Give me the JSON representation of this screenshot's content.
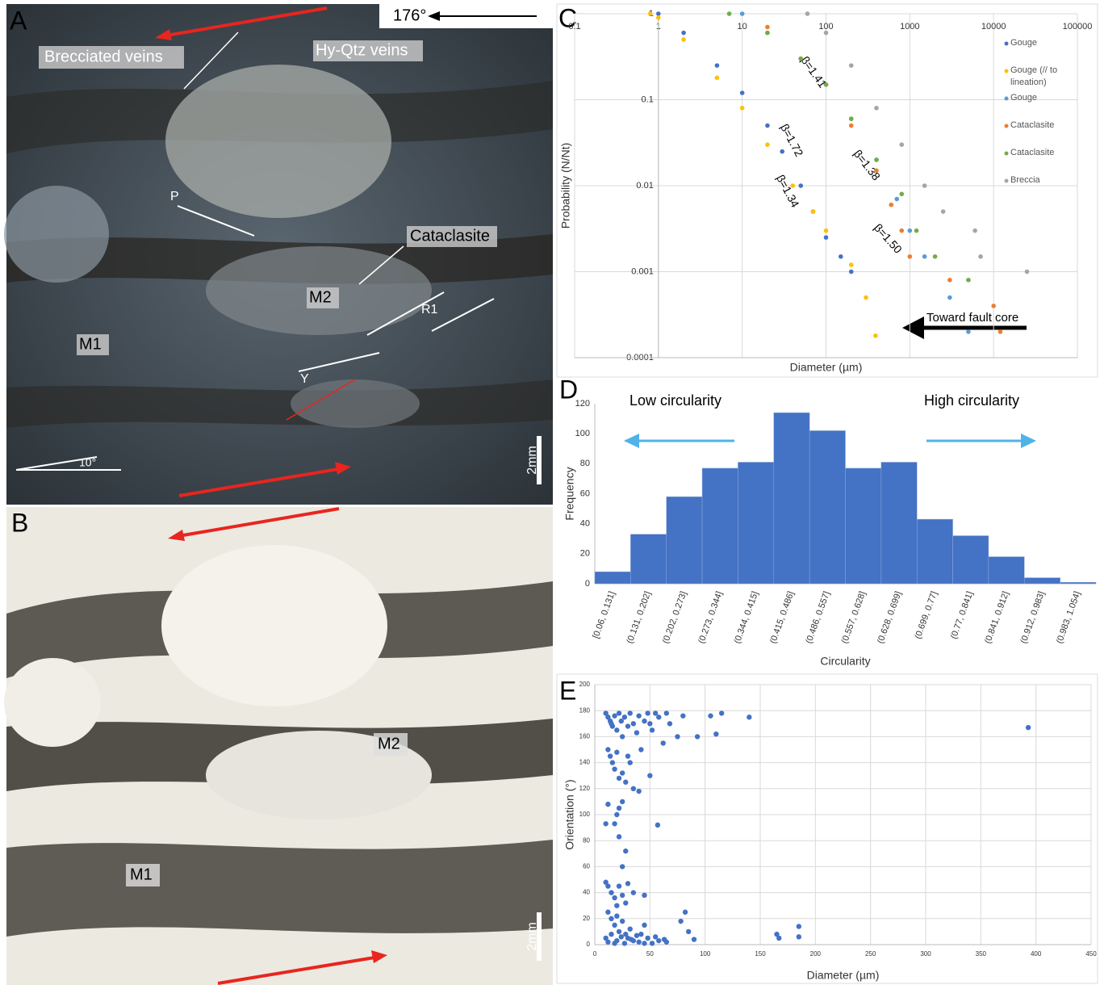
{
  "panels": {
    "A": {
      "letter": "A",
      "bearing": "176°",
      "labels": [
        "Brecciated veins",
        "Hy-Qtz veins",
        "P",
        "Cataclasite",
        "M2",
        "R1",
        "M1",
        "Y",
        "10°"
      ],
      "scale": "2mm"
    },
    "B": {
      "letter": "B",
      "labels": [
        "M2",
        "M1"
      ],
      "scale": "2mm"
    }
  },
  "chart_data": [
    {
      "type": "scatter",
      "panel": "C",
      "log_x": true,
      "log_y": true,
      "grid": true,
      "legend": "right",
      "xlabel": "Diameter (µm)",
      "ylabel": "Probability (N/Nt)",
      "xlim": [
        0.1,
        100000
      ],
      "ylim": [
        0.0001,
        1
      ],
      "xticks": [
        0.1,
        1,
        10,
        100,
        1000,
        10000,
        100000
      ],
      "yticks": [
        1,
        0.1,
        0.01,
        0.001,
        0.0001
      ],
      "annotations": [
        "β=1.41",
        "β=1.72",
        "β=1.38",
        "β=1.34",
        "β=1.50",
        "Toward  fault core"
      ],
      "series": [
        {
          "name": "Gouge",
          "color": "#4472c4",
          "x": [
            1,
            2,
            5,
            10,
            20,
            30,
            50,
            70,
            100,
            150,
            200
          ],
          "values": [
            1,
            0.6,
            0.25,
            0.12,
            0.05,
            0.025,
            0.01,
            0.005,
            0.0025,
            0.0015,
            0.001
          ]
        },
        {
          "name": "Gouge (// to lineation)",
          "color": "#ffc000",
          "x": [
            0.8,
            1,
            2,
            5,
            10,
            20,
            40,
            70,
            100,
            200,
            300,
            390
          ],
          "values": [
            1,
            0.9,
            0.5,
            0.18,
            0.08,
            0.03,
            0.01,
            0.005,
            0.003,
            0.0012,
            0.0005,
            0.00018
          ]
        },
        {
          "name": "Gouge",
          "color": "#5b9bd5",
          "x": [
            10,
            20,
            50,
            100,
            200,
            400,
            700,
            1000,
            1500,
            3000,
            5000
          ],
          "values": [
            1,
            0.6,
            0.3,
            0.15,
            0.06,
            0.02,
            0.007,
            0.003,
            0.0015,
            0.0005,
            0.0002
          ]
        },
        {
          "name": "Cataclasite",
          "color": "#ed7d31",
          "x": [
            20,
            50,
            100,
            200,
            400,
            600,
            800,
            1000,
            3000,
            10000,
            12000
          ],
          "values": [
            0.7,
            0.3,
            0.15,
            0.05,
            0.015,
            0.006,
            0.003,
            0.0015,
            0.0008,
            0.0004,
            0.0002
          ]
        },
        {
          "name": "Cataclasite",
          "color": "#70ad47",
          "x": [
            7,
            20,
            50,
            100,
            200,
            400,
            800,
            1200,
            2000,
            5000
          ],
          "values": [
            1,
            0.6,
            0.3,
            0.15,
            0.06,
            0.02,
            0.008,
            0.003,
            0.0015,
            0.0008
          ]
        },
        {
          "name": "Breccia",
          "color": "#a5a5a5",
          "x": [
            60,
            100,
            200,
            400,
            800,
            1500,
            2500,
            6000,
            7000,
            25000
          ],
          "values": [
            1,
            0.6,
            0.25,
            0.08,
            0.03,
            0.01,
            0.005,
            0.003,
            0.0015,
            0.001
          ]
        }
      ]
    },
    {
      "type": "bar",
      "panel": "D",
      "color": "#4472c4",
      "xlabel": "Circularity",
      "ylabel": "Frequency",
      "annotations": [
        "Low circularity",
        "High circularity"
      ],
      "ylim": [
        0,
        120
      ],
      "yticks": [
        0,
        20,
        40,
        60,
        80,
        100,
        120
      ],
      "categories": [
        "[0.06, 0.131]",
        "(0.131, 0.202]",
        "(0.202, 0.273]",
        "(0.273, 0.344]",
        "(0.344, 0.415]",
        "(0.415, 0.486]",
        "(0.486, 0.557]",
        "(0.557, 0.628]",
        "(0.628, 0.699]",
        "(0.699, 0.77]",
        "(0.77, 0.841]",
        "(0.841, 0.912]",
        "(0.912, 0.983]",
        "(0.983, 1.054]"
      ],
      "values": [
        8,
        33,
        58,
        77,
        81,
        114,
        102,
        77,
        81,
        43,
        32,
        18,
        4,
        1
      ]
    },
    {
      "type": "scatter",
      "panel": "E",
      "grid": true,
      "color": "#4472c4",
      "xlabel": "Diameter (µm)",
      "ylabel": "Orientation (°)",
      "xlim": [
        0,
        450
      ],
      "ylim": [
        0,
        200
      ],
      "xticks": [
        0,
        50,
        100,
        150,
        200,
        250,
        300,
        350,
        400,
        450
      ],
      "yticks": [
        0,
        20,
        40,
        60,
        80,
        100,
        120,
        140,
        160,
        180,
        200
      ],
      "x": [
        10,
        12,
        14,
        15,
        16,
        18,
        20,
        22,
        24,
        25,
        27,
        30,
        32,
        35,
        38,
        40,
        42,
        45,
        48,
        50,
        52,
        55,
        58,
        62,
        65,
        68,
        75,
        80,
        93,
        105,
        110,
        115,
        140,
        393,
        12,
        14,
        16,
        18,
        20,
        22,
        25,
        28,
        30,
        32,
        35,
        40,
        50,
        57,
        12,
        10,
        20,
        22,
        25,
        18,
        22,
        28,
        25,
        10,
        12,
        15,
        18,
        20,
        22,
        25,
        28,
        30,
        35,
        45,
        12,
        15,
        18,
        20,
        22,
        25,
        28,
        30,
        32,
        35,
        38,
        40,
        45,
        48,
        52,
        58,
        65,
        78,
        82,
        85,
        90,
        165,
        167,
        185,
        185,
        10,
        12,
        15,
        18,
        20,
        24,
        27,
        33,
        42,
        45,
        55,
        63
      ],
      "values": [
        178,
        175,
        172,
        170,
        168,
        176,
        165,
        178,
        172,
        160,
        175,
        168,
        178,
        170,
        163,
        176,
        150,
        172,
        178,
        170,
        165,
        178,
        175,
        155,
        178,
        170,
        160,
        176,
        160,
        176,
        162,
        178,
        175,
        167,
        150,
        145,
        140,
        135,
        148,
        128,
        132,
        125,
        145,
        140,
        120,
        118,
        130,
        92,
        108,
        93,
        100,
        105,
        110,
        93,
        83,
        72,
        60,
        48,
        45,
        40,
        36,
        30,
        45,
        38,
        32,
        47,
        40,
        38,
        25,
        20,
        15,
        22,
        10,
        18,
        8,
        5,
        12,
        3,
        7,
        2,
        15,
        5,
        1,
        3,
        2,
        18,
        25,
        10,
        4,
        8,
        5,
        14,
        6,
        5,
        2,
        8,
        1,
        3,
        6,
        1,
        4,
        8,
        1,
        6,
        4
      ]
    }
  ]
}
